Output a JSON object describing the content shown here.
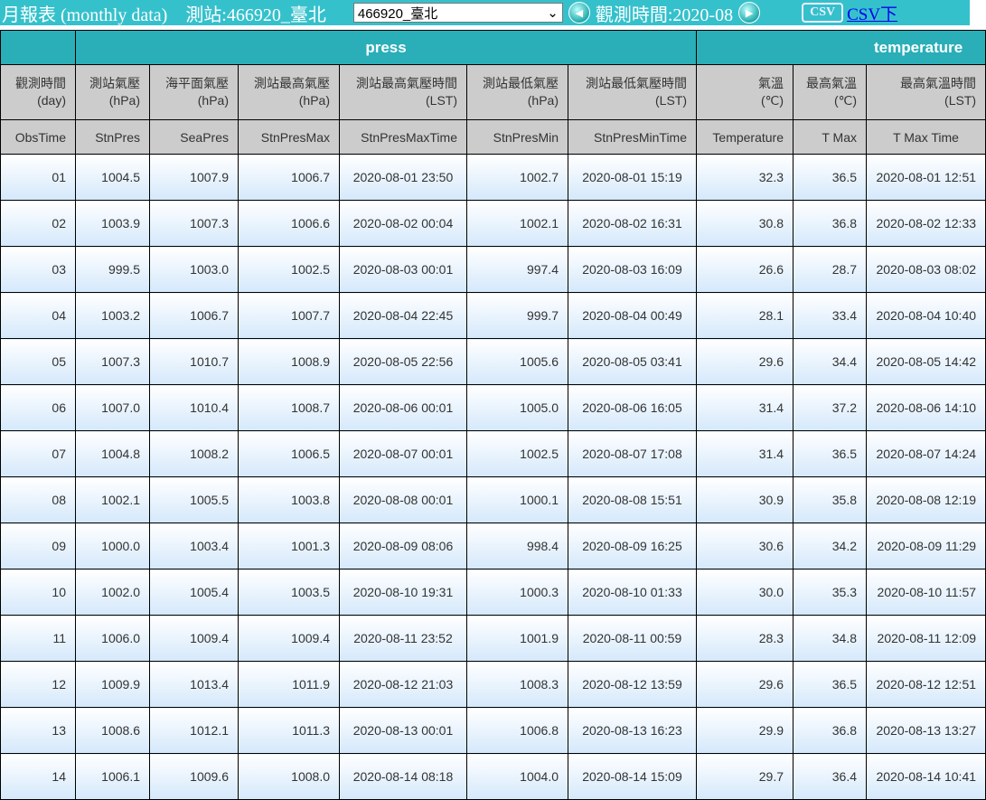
{
  "header": {
    "title": "月報表 (monthly data)",
    "station": "測站:466920_臺北",
    "station_select": "466920_臺北",
    "obs_time": "觀測時間:2020-08",
    "csv_icon": "CSV",
    "csv_link": "CSV下"
  },
  "groups": {
    "press": "press",
    "temperature": "temperature"
  },
  "columns": [
    {
      "zh": "觀測時間",
      "unit": "(day)",
      "code": "ObsTime"
    },
    {
      "zh": "測站氣壓",
      "unit": "(hPa)",
      "code": "StnPres"
    },
    {
      "zh": "海平面氣壓",
      "unit": "(hPa)",
      "code": "SeaPres"
    },
    {
      "zh": "測站最高氣壓",
      "unit": "(hPa)",
      "code": "StnPresMax"
    },
    {
      "zh": "測站最高氣壓時間",
      "unit": "(LST)",
      "code": "StnPresMaxTime"
    },
    {
      "zh": "測站最低氣壓",
      "unit": "(hPa)",
      "code": "StnPresMin"
    },
    {
      "zh": "測站最低氣壓時間",
      "unit": "(LST)",
      "code": "StnPresMinTime"
    },
    {
      "zh": "氣溫",
      "unit": "(℃)",
      "code": "Temperature"
    },
    {
      "zh": "最高氣溫",
      "unit": "(℃)",
      "code": "T Max"
    },
    {
      "zh": "最高氣溫時間",
      "unit": "(LST)",
      "code": "T Max Time"
    }
  ],
  "rows": [
    [
      "01",
      "1004.5",
      "1007.9",
      "1006.7",
      "2020-08-01 23:50",
      "1002.7",
      "2020-08-01 15:19",
      "32.3",
      "36.5",
      "2020-08-01 12:51"
    ],
    [
      "02",
      "1003.9",
      "1007.3",
      "1006.6",
      "2020-08-02 00:04",
      "1002.1",
      "2020-08-02 16:31",
      "30.8",
      "36.8",
      "2020-08-02 12:33"
    ],
    [
      "03",
      "999.5",
      "1003.0",
      "1002.5",
      "2020-08-03 00:01",
      "997.4",
      "2020-08-03 16:09",
      "26.6",
      "28.7",
      "2020-08-03 08:02"
    ],
    [
      "04",
      "1003.2",
      "1006.7",
      "1007.7",
      "2020-08-04 22:45",
      "999.7",
      "2020-08-04 00:49",
      "28.1",
      "33.4",
      "2020-08-04 10:40"
    ],
    [
      "05",
      "1007.3",
      "1010.7",
      "1008.9",
      "2020-08-05 22:56",
      "1005.6",
      "2020-08-05 03:41",
      "29.6",
      "34.4",
      "2020-08-05 14:42"
    ],
    [
      "06",
      "1007.0",
      "1010.4",
      "1008.7",
      "2020-08-06 00:01",
      "1005.0",
      "2020-08-06 16:05",
      "31.4",
      "37.2",
      "2020-08-06 14:10"
    ],
    [
      "07",
      "1004.8",
      "1008.2",
      "1006.5",
      "2020-08-07 00:01",
      "1002.5",
      "2020-08-07 17:08",
      "31.4",
      "36.5",
      "2020-08-07 14:24"
    ],
    [
      "08",
      "1002.1",
      "1005.5",
      "1003.8",
      "2020-08-08 00:01",
      "1000.1",
      "2020-08-08 15:51",
      "30.9",
      "35.8",
      "2020-08-08 12:19"
    ],
    [
      "09",
      "1000.0",
      "1003.4",
      "1001.3",
      "2020-08-09 08:06",
      "998.4",
      "2020-08-09 16:25",
      "30.6",
      "34.2",
      "2020-08-09 11:29"
    ],
    [
      "10",
      "1002.0",
      "1005.4",
      "1003.5",
      "2020-08-10 19:31",
      "1000.3",
      "2020-08-10 01:33",
      "30.0",
      "35.3",
      "2020-08-10 11:57"
    ],
    [
      "11",
      "1006.0",
      "1009.4",
      "1009.4",
      "2020-08-11 23:52",
      "1001.9",
      "2020-08-11 00:59",
      "28.3",
      "34.8",
      "2020-08-11 12:09"
    ],
    [
      "12",
      "1009.9",
      "1013.4",
      "1011.9",
      "2020-08-12 21:03",
      "1008.3",
      "2020-08-12 13:59",
      "29.6",
      "36.5",
      "2020-08-12 12:51"
    ],
    [
      "13",
      "1008.6",
      "1012.1",
      "1011.3",
      "2020-08-13 00:01",
      "1006.8",
      "2020-08-13 16:23",
      "29.9",
      "36.8",
      "2020-08-13 13:27"
    ],
    [
      "14",
      "1006.1",
      "1009.6",
      "1008.0",
      "2020-08-14 08:18",
      "1004.0",
      "2020-08-14 15:09",
      "29.7",
      "36.4",
      "2020-08-14 10:41"
    ]
  ]
}
